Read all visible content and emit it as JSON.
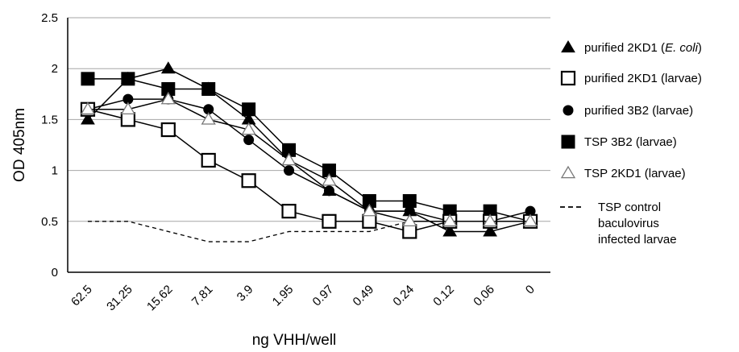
{
  "chart_data": {
    "type": "line",
    "title": "",
    "xlabel": "ng VHH/well",
    "ylabel": "OD 405nm",
    "ylim": [
      0,
      2.5
    ],
    "yticks": [
      "0",
      "0.5",
      "1",
      "1.5",
      "2",
      "2.5"
    ],
    "grid": "horizontal",
    "legend_position": "right",
    "categories": [
      "62.5",
      "31.25",
      "15.62",
      "7.81",
      "3.9",
      "1.95",
      "0.97",
      "0.49",
      "0.24",
      "0.12",
      "0.06",
      "0"
    ],
    "series": [
      {
        "name": "purified 2KD1 (E. coli)",
        "legend_parts": [
          "purified 2KD1 (",
          "E. coli",
          ")"
        ],
        "marker": "triangle-filled",
        "line": "solid",
        "values": [
          1.5,
          1.9,
          2.0,
          1.8,
          1.5,
          1.1,
          0.8,
          0.6,
          0.6,
          0.4,
          0.4,
          0.5
        ]
      },
      {
        "name": "purified 2KD1 (larvae)",
        "marker": "square-open",
        "line": "solid",
        "values": [
          1.6,
          1.5,
          1.4,
          1.1,
          0.9,
          0.6,
          0.5,
          0.5,
          0.4,
          0.5,
          0.5,
          0.5
        ]
      },
      {
        "name": "purified 3B2  (larvae)",
        "marker": "circle-filled",
        "line": "solid",
        "values": [
          1.6,
          1.7,
          1.7,
          1.6,
          1.3,
          1.0,
          0.8,
          0.6,
          0.6,
          0.5,
          0.5,
          0.6
        ]
      },
      {
        "name": "TSP 3B2  (larvae)",
        "marker": "square-filled",
        "line": "solid",
        "values": [
          1.9,
          1.9,
          1.8,
          1.8,
          1.6,
          1.2,
          1.0,
          0.7,
          0.7,
          0.6,
          0.6,
          0.5
        ]
      },
      {
        "name": "TSP 2KD1  (larvae)",
        "marker": "triangle-open",
        "line": "solid",
        "values": [
          1.6,
          1.6,
          1.7,
          1.5,
          1.4,
          1.1,
          0.9,
          0.6,
          0.5,
          0.5,
          0.5,
          0.5
        ]
      },
      {
        "name": "TSP control baculovirus infected larvae",
        "legend_lines": [
          "TSP control",
          "baculovirus",
          "infected larvae"
        ],
        "marker": "none",
        "line": "dashed",
        "values": [
          0.5,
          0.5,
          0.4,
          0.3,
          0.3,
          0.4,
          0.4,
          0.4,
          0.5,
          0.5,
          0.5,
          0.5
        ]
      }
    ]
  }
}
